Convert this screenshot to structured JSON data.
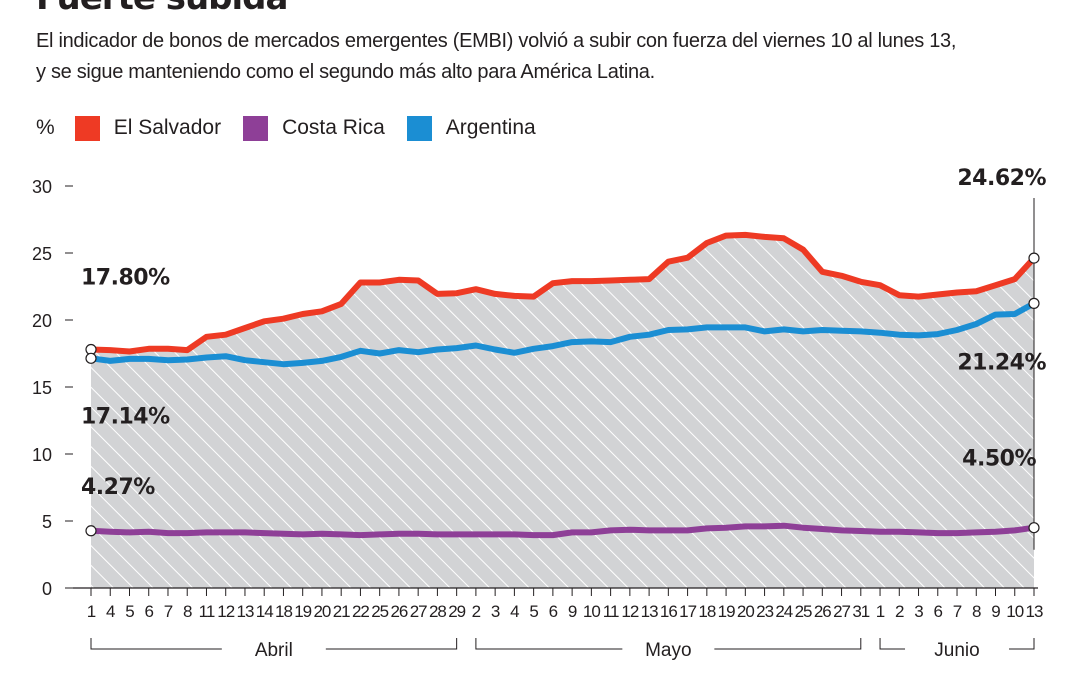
{
  "header": {
    "title": "Fuerte subida",
    "subtitle_lines": [
      "El indicador de bonos de mercados emergentes (EMBI) volvió a subir con fuerza del viernes 10 al lunes 13,",
      "y se sigue manteniendo como el segundo más alto para América Latina."
    ]
  },
  "chart_data": {
    "type": "line",
    "unit_label": "%",
    "ylim": [
      0,
      30
    ],
    "yticks": [
      "0",
      "5",
      "10",
      "15",
      "20",
      "25",
      "30"
    ],
    "categories": [
      "1",
      "4",
      "5",
      "6",
      "7",
      "8",
      "11",
      "12",
      "13",
      "14",
      "18",
      "19",
      "20",
      "21",
      "22",
      "25",
      "26",
      "27",
      "28",
      "29",
      "2",
      "3",
      "4",
      "5",
      "6",
      "9",
      "10",
      "11",
      "12",
      "13",
      "16",
      "17",
      "18",
      "19",
      "20",
      "23",
      "24",
      "25",
      "26",
      "27",
      "31",
      "1",
      "2",
      "3",
      "6",
      "7",
      "8",
      "9",
      "10",
      "13"
    ],
    "month_groups": [
      {
        "label": "Abril",
        "start": 0,
        "end": 19
      },
      {
        "label": "Mayo",
        "start": 20,
        "end": 40
      },
      {
        "label": "Junio",
        "start": 41,
        "end": 49
      }
    ],
    "series": [
      {
        "name": "El Salvador",
        "color": "#ee3a24",
        "fill_area": true,
        "values": [
          17.8,
          17.75,
          17.65,
          17.85,
          17.85,
          17.75,
          18.75,
          18.9,
          19.4,
          19.9,
          20.1,
          20.45,
          20.65,
          21.2,
          22.8,
          22.8,
          23.0,
          22.95,
          21.95,
          22.0,
          22.3,
          21.95,
          21.8,
          21.75,
          22.75,
          22.9,
          22.9,
          22.95,
          23.0,
          23.05,
          24.35,
          24.65,
          25.75,
          26.3,
          26.35,
          26.2,
          26.1,
          25.25,
          23.6,
          23.3,
          22.85,
          22.6,
          21.85,
          21.75,
          21.9,
          22.05,
          22.15,
          22.6,
          23.05,
          24.62
        ]
      },
      {
        "name": "Costa Rica",
        "color": "#8e3f97",
        "fill_area": false,
        "values": [
          4.27,
          4.2,
          4.15,
          4.2,
          4.1,
          4.1,
          4.15,
          4.15,
          4.15,
          4.1,
          4.05,
          4.0,
          4.05,
          4.0,
          3.95,
          4.0,
          4.05,
          4.05,
          4.0,
          4.0,
          4.0,
          4.0,
          4.0,
          3.95,
          3.95,
          4.15,
          4.15,
          4.3,
          4.35,
          4.3,
          4.3,
          4.3,
          4.45,
          4.5,
          4.6,
          4.6,
          4.65,
          4.5,
          4.4,
          4.3,
          4.25,
          4.2,
          4.2,
          4.15,
          4.1,
          4.1,
          4.15,
          4.2,
          4.3,
          4.5
        ]
      },
      {
        "name": "Argentina",
        "color": "#1b8ed3",
        "fill_area": false,
        "values": [
          17.14,
          16.95,
          17.1,
          17.1,
          17.0,
          17.05,
          17.2,
          17.3,
          17.0,
          16.85,
          16.7,
          16.8,
          16.95,
          17.25,
          17.7,
          17.5,
          17.75,
          17.6,
          17.8,
          17.9,
          18.1,
          17.8,
          17.55,
          17.85,
          18.05,
          18.35,
          18.4,
          18.35,
          18.75,
          18.9,
          19.25,
          19.3,
          19.45,
          19.45,
          19.45,
          19.15,
          19.3,
          19.15,
          19.25,
          19.2,
          19.15,
          19.05,
          18.9,
          18.85,
          18.95,
          19.25,
          19.7,
          20.4,
          20.45,
          21.24
        ]
      }
    ],
    "callouts": [
      {
        "text": "17.80%",
        "series": 0,
        "index": 0
      },
      {
        "text": "17.14%",
        "series": 2,
        "index": 0
      },
      {
        "text": "4.27%",
        "series": 1,
        "index": 0
      },
      {
        "text": "24.62%",
        "series": 0,
        "index": 49
      },
      {
        "text": "21.24%",
        "series": 2,
        "index": 49
      },
      {
        "text": "4.50%",
        "series": 1,
        "index": 49
      }
    ],
    "grid": false,
    "legend_position": "top-left"
  }
}
